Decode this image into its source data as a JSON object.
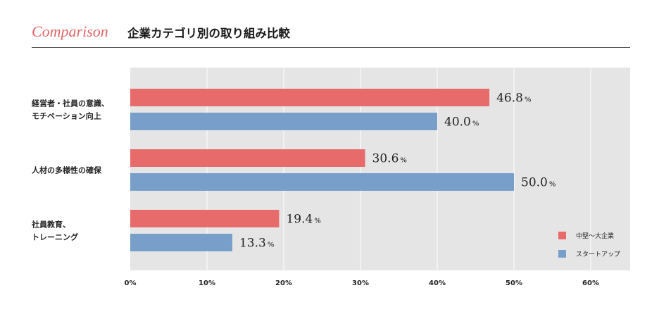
{
  "header": {
    "tag": "Comparison",
    "title": "企業カテゴリ別の取り組み比較"
  },
  "chart_data": {
    "type": "bar",
    "orientation": "horizontal",
    "categories": [
      [
        "経営者・社員の意識、",
        "モチベーション向上"
      ],
      [
        "人材の多様性の確保"
      ],
      [
        "社員教育、",
        "トレーニング"
      ]
    ],
    "series": [
      {
        "name": "中堅〜大企業",
        "color": "#e76b6b",
        "values": [
          46.8,
          30.6,
          19.4
        ]
      },
      {
        "name": "スタートアップ",
        "color": "#789fca",
        "values": [
          40.0,
          50.0,
          13.3
        ]
      }
    ],
    "value_unit": "%",
    "xlim": [
      0,
      65
    ],
    "xticks": [
      0,
      10,
      20,
      30,
      40,
      50,
      60
    ],
    "tick_suffix": "%",
    "grid": true,
    "plot_background": "#e5e5e5",
    "legend_position": "bottom-right"
  }
}
